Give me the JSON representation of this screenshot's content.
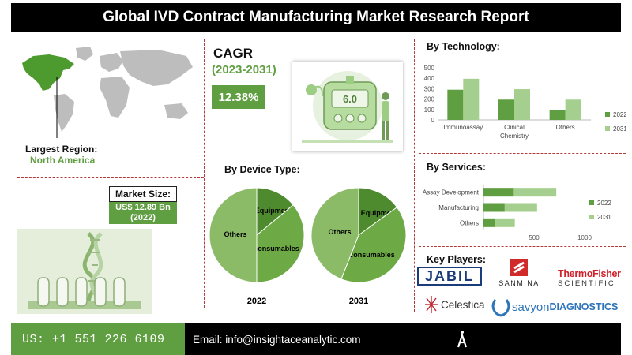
{
  "title": "Global IVD Contract Manufacturing Market Research Report",
  "region": {
    "label": "Largest Region:",
    "value": "North America"
  },
  "cagr": {
    "label": "CAGR",
    "period": "(2023-2031)",
    "value": "12.38%"
  },
  "device_display": "6.0",
  "market_size": {
    "label": "Market Size:",
    "value": "US$ 12.89 Bn",
    "year": "(2022)"
  },
  "sections": {
    "device_type": "By Device Type:",
    "technology": "By Technology:",
    "services": "By Services:",
    "key_players": "Key Players:"
  },
  "key_players": {
    "jabil": "JABIL",
    "sanmina": "SANMINA",
    "thermo_1": "ThermoFisher",
    "thermo_2": "SCIENTIFIC",
    "celestica": "Celestica",
    "savyon_1": "savyon",
    "savyon_2": "DIAGNOSTICS"
  },
  "footer": {
    "phone": "US: +1 551 226 6109",
    "email": "Email: info@insightaceanalytic.com"
  },
  "colors": {
    "dark_green": "#5f9f41",
    "light_green": "#a5cf8e",
    "pie_dark": "#4e8b2f",
    "pie_mid": "#6daa45",
    "pie_light": "#8cbb68",
    "accent_red": "#b23a3a"
  },
  "chart_data": [
    {
      "type": "bar",
      "title": "By Technology:",
      "categories": [
        "Immunoassay",
        "Clinical Chemistry",
        "Others"
      ],
      "series": [
        {
          "name": "2022",
          "values": [
            290,
            195,
            95
          ]
        },
        {
          "name": "2031",
          "values": [
            395,
            295,
            195
          ]
        }
      ],
      "ylim": [
        0,
        500
      ],
      "yticks": [
        0,
        100,
        200,
        300,
        400,
        500
      ],
      "legend": "right"
    },
    {
      "type": "bar",
      "orientation": "horizontal",
      "stacked": true,
      "title": "By Services:",
      "categories": [
        "Assay Development",
        "Manufacturing",
        "Others"
      ],
      "series": [
        {
          "name": "2022",
          "values": [
            300,
            210,
            110
          ]
        },
        {
          "name": "2031",
          "values": [
            420,
            320,
            200
          ]
        }
      ],
      "xlim": [
        0,
        1000
      ],
      "xticks": [
        500,
        1000
      ],
      "legend": "right"
    },
    {
      "type": "pie",
      "title": "By Device Type:",
      "subtitle": "2022",
      "labels": [
        "Equipment",
        "consumables",
        "Others"
      ],
      "values": [
        14,
        36,
        50
      ]
    },
    {
      "type": "pie",
      "title": "By Device Type:",
      "subtitle": "2031",
      "labels": [
        "Equipment",
        "consumables",
        "Others"
      ],
      "values": [
        15,
        41,
        44
      ]
    }
  ]
}
